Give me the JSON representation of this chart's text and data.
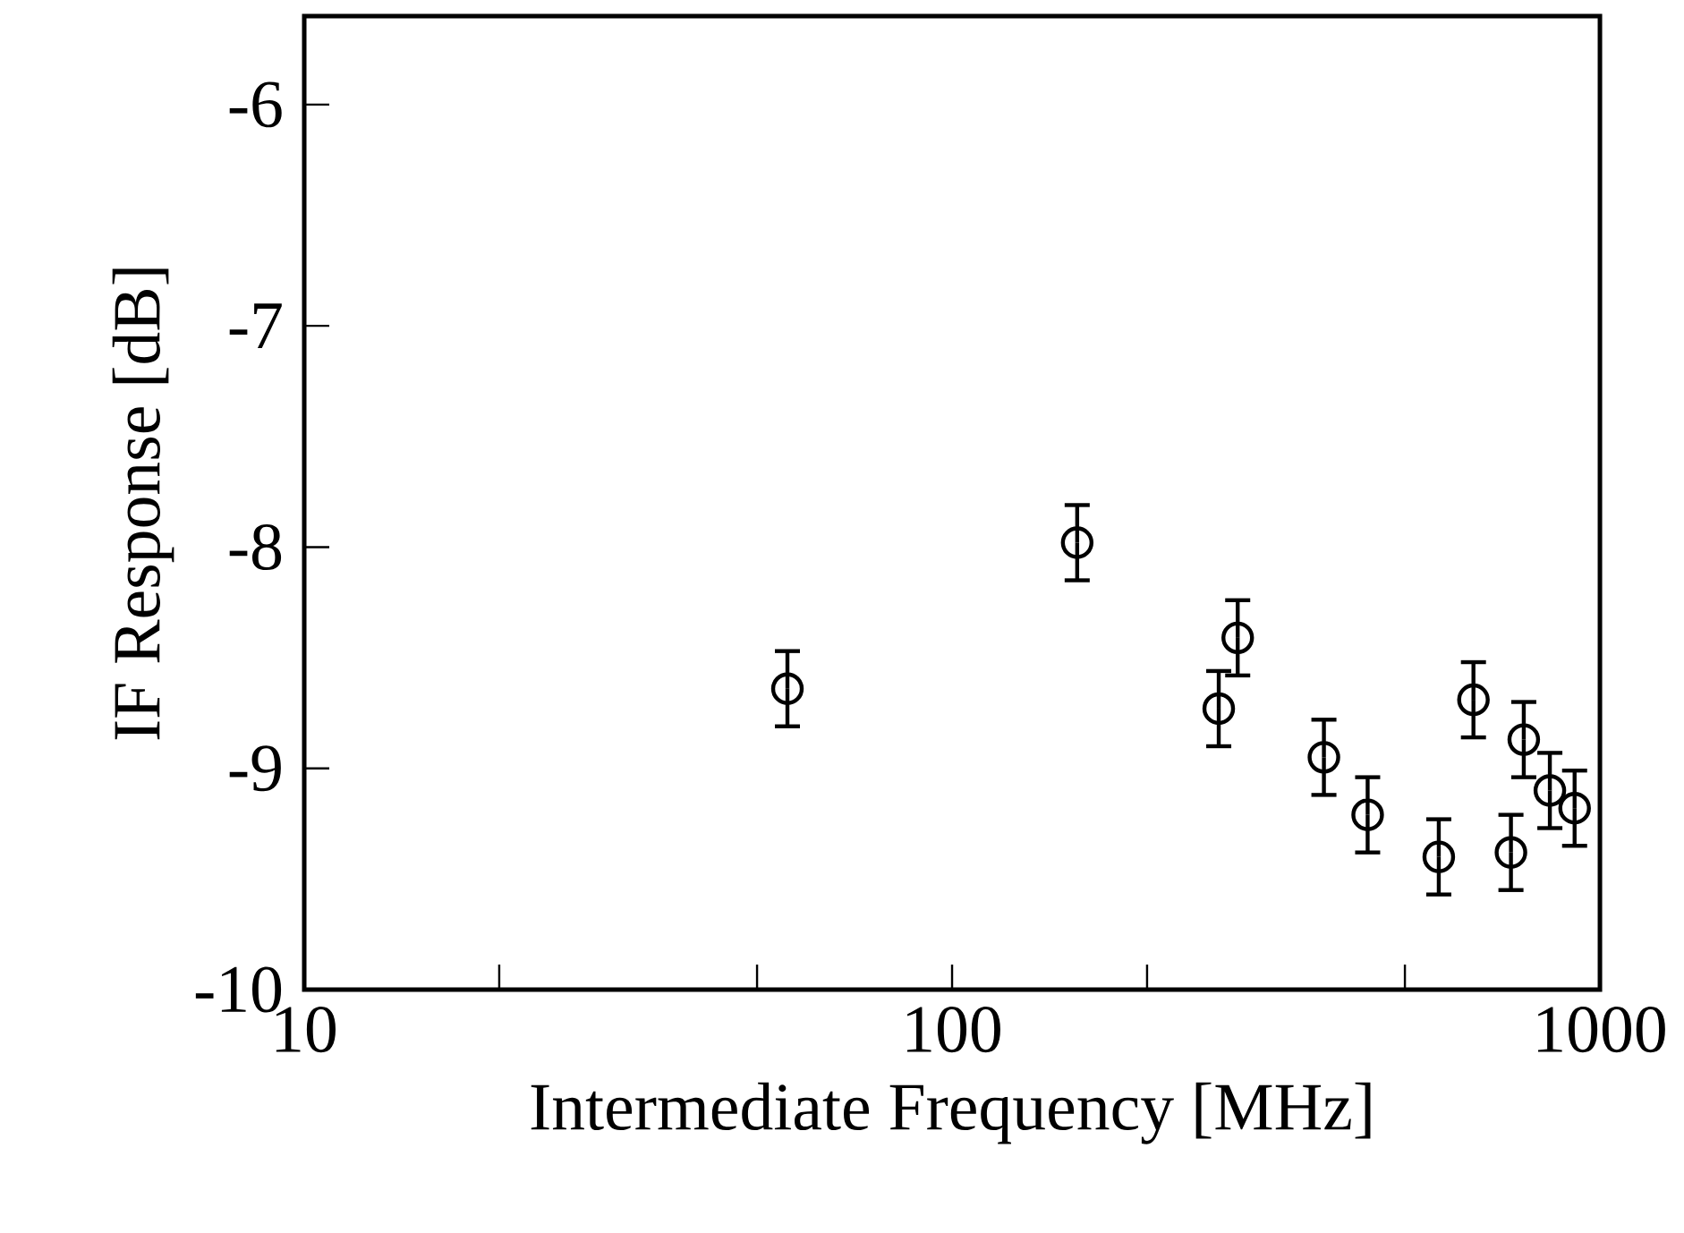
{
  "chart_data": {
    "type": "scatter",
    "xlabel": "Intermediate Frequency   [MHz]",
    "ylabel": "IF Response [dB]",
    "x": [
      55.7,
      156,
      258,
      276,
      375,
      438,
      564,
      638,
      729,
      763,
      837,
      914
    ],
    "values": [
      -8.64,
      -7.98,
      -8.73,
      -8.41,
      -8.95,
      -9.21,
      -9.4,
      -8.69,
      -9.38,
      -8.87,
      -9.1,
      -9.18
    ],
    "errors": [
      0.17,
      0.17,
      0.17,
      0.17,
      0.17,
      0.17,
      0.17,
      0.17,
      0.17,
      0.17,
      0.17,
      0.17
    ],
    "color": "#000000",
    "marker": "circle",
    "log": "x",
    "xlim": [
      10,
      1000
    ],
    "xticks": [
      10,
      {
        "value": 20,
        "label": null
      },
      {
        "value": 50,
        "label": null
      },
      100,
      {
        "value": 200,
        "label": null
      },
      {
        "value": 500,
        "label": null
      },
      1000
    ],
    "ylim": [
      -10,
      -5.6
    ],
    "yticks": [
      -10,
      -9,
      -8,
      -7,
      -6
    ]
  }
}
